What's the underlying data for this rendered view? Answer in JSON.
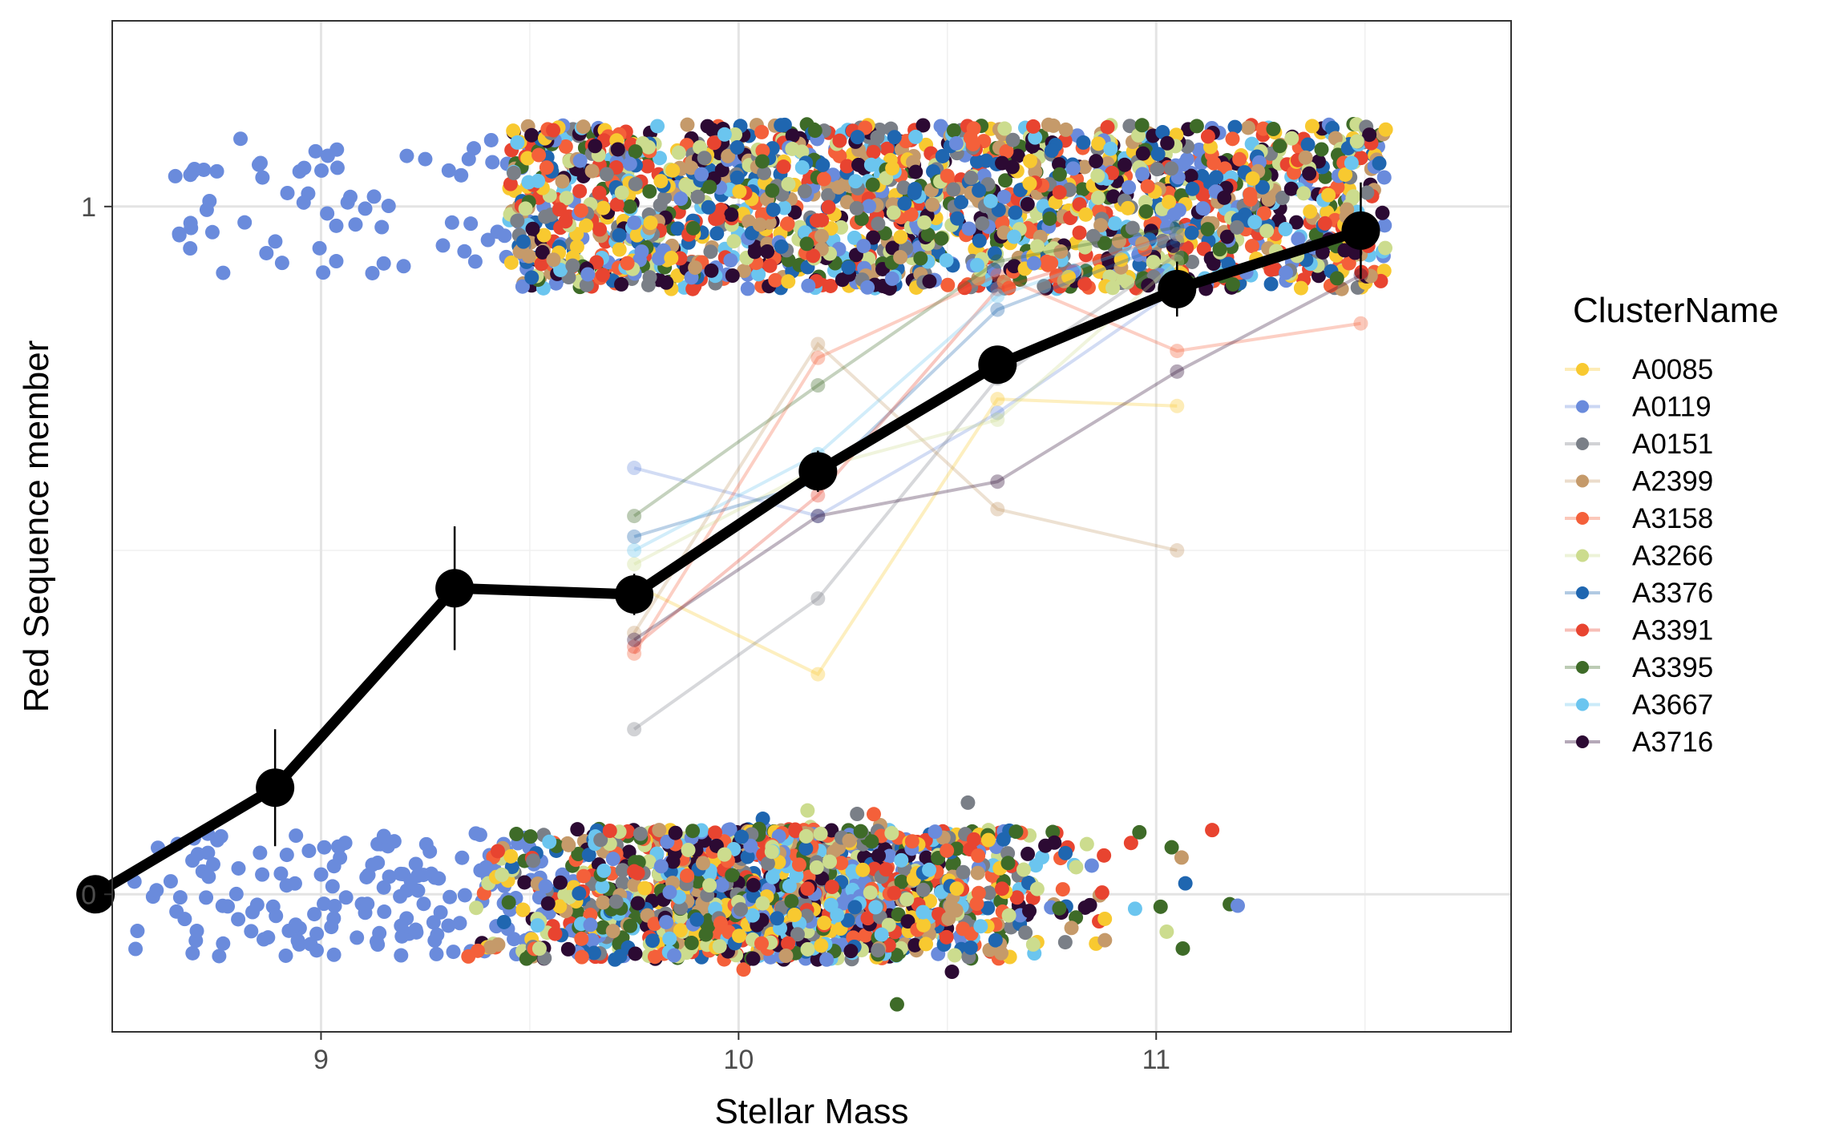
{
  "chart_data": {
    "type": "scatter",
    "title": "",
    "xlabel": "Stellar Mass",
    "ylabel": "Red Sequence member",
    "xlim": [
      8.5,
      11.85
    ],
    "ylim": [
      -0.2,
      1.27
    ],
    "x_ticks": [
      9,
      10,
      11
    ],
    "y_ticks": [
      0,
      1
    ],
    "grid": true,
    "theme": "black-and-white (theme_bw)",
    "legend": {
      "title": "ClusterName",
      "position": "right"
    },
    "series": [
      {
        "name": "A0085",
        "color": "#F8C930",
        "binned": [
          [
            9.75,
            0.45
          ],
          [
            10.19,
            0.32
          ],
          [
            10.62,
            0.72
          ],
          [
            11.05,
            0.71
          ]
        ]
      },
      {
        "name": "A0119",
        "color": "#6A8BDC",
        "binned": [
          [
            9.75,
            0.62
          ],
          [
            10.19,
            0.55
          ],
          [
            10.62,
            0.7
          ],
          [
            11.05,
            0.88
          ]
        ]
      },
      {
        "name": "A0151",
        "color": "#7A7F87",
        "binned": [
          [
            9.75,
            0.24
          ],
          [
            10.19,
            0.43
          ],
          [
            10.62,
            0.75
          ],
          [
            11.05,
            0.93
          ]
        ]
      },
      {
        "name": "A2399",
        "color": "#C59A6A",
        "binned": [
          [
            9.75,
            0.38
          ],
          [
            10.19,
            0.8
          ],
          [
            10.62,
            0.56
          ],
          [
            11.05,
            0.5
          ]
        ]
      },
      {
        "name": "A3158",
        "color": "#F4603A",
        "binned": [
          [
            9.75,
            0.35
          ],
          [
            10.19,
            0.78
          ],
          [
            10.62,
            0.9
          ],
          [
            11.05,
            0.79
          ],
          [
            11.49,
            0.83
          ]
        ]
      },
      {
        "name": "A3266",
        "color": "#CCDC8E",
        "binned": [
          [
            9.75,
            0.48
          ],
          [
            10.19,
            0.62
          ],
          [
            10.62,
            0.69
          ],
          [
            11.05,
            0.92
          ]
        ]
      },
      {
        "name": "A3376",
        "color": "#1F66B0",
        "binned": [
          [
            9.75,
            0.52
          ],
          [
            10.19,
            0.6
          ],
          [
            10.62,
            0.85
          ],
          [
            11.05,
            0.95
          ]
        ]
      },
      {
        "name": "A3391",
        "color": "#E84430",
        "binned": [
          [
            9.75,
            0.36
          ],
          [
            10.19,
            0.58
          ],
          [
            10.62,
            0.88
          ],
          [
            11.05,
            0.96
          ]
        ]
      },
      {
        "name": "A3395",
        "color": "#3E6B28",
        "binned": [
          [
            9.75,
            0.55
          ],
          [
            10.19,
            0.74
          ],
          [
            10.62,
            0.92
          ],
          [
            11.05,
            0.97
          ]
        ]
      },
      {
        "name": "A3667",
        "color": "#6BC5EF",
        "binned": [
          [
            9.75,
            0.5
          ],
          [
            10.19,
            0.64
          ],
          [
            10.62,
            0.87
          ],
          [
            11.05,
            0.96
          ]
        ]
      },
      {
        "name": "A3716",
        "color": "#2C0A33",
        "binned": [
          [
            9.75,
            0.37
          ],
          [
            10.19,
            0.55
          ],
          [
            10.62,
            0.6
          ],
          [
            11.05,
            0.76
          ],
          [
            11.49,
            0.9
          ]
        ]
      }
    ],
    "mean_line": {
      "color": "#000000",
      "points": [
        {
          "x": 8.46,
          "y": 0.0,
          "err": 0.0
        },
        {
          "x": 8.89,
          "y": 0.155,
          "err": 0.085
        },
        {
          "x": 9.32,
          "y": 0.445,
          "err": 0.09
        },
        {
          "x": 9.75,
          "y": 0.436,
          "err": 0.03
        },
        {
          "x": 10.19,
          "y": 0.615,
          "err": 0.03
        },
        {
          "x": 10.62,
          "y": 0.77,
          "err": 0.025
        },
        {
          "x": 11.05,
          "y": 0.88,
          "err": 0.04
        },
        {
          "x": 11.49,
          "y": 0.965,
          "err": 0.07
        }
      ]
    },
    "scatter_summary": {
      "value_0_x_range": [
        8.46,
        11.3
      ],
      "value_1_x_range": [
        8.6,
        11.75
      ],
      "jitter_y": 0.15
    }
  }
}
